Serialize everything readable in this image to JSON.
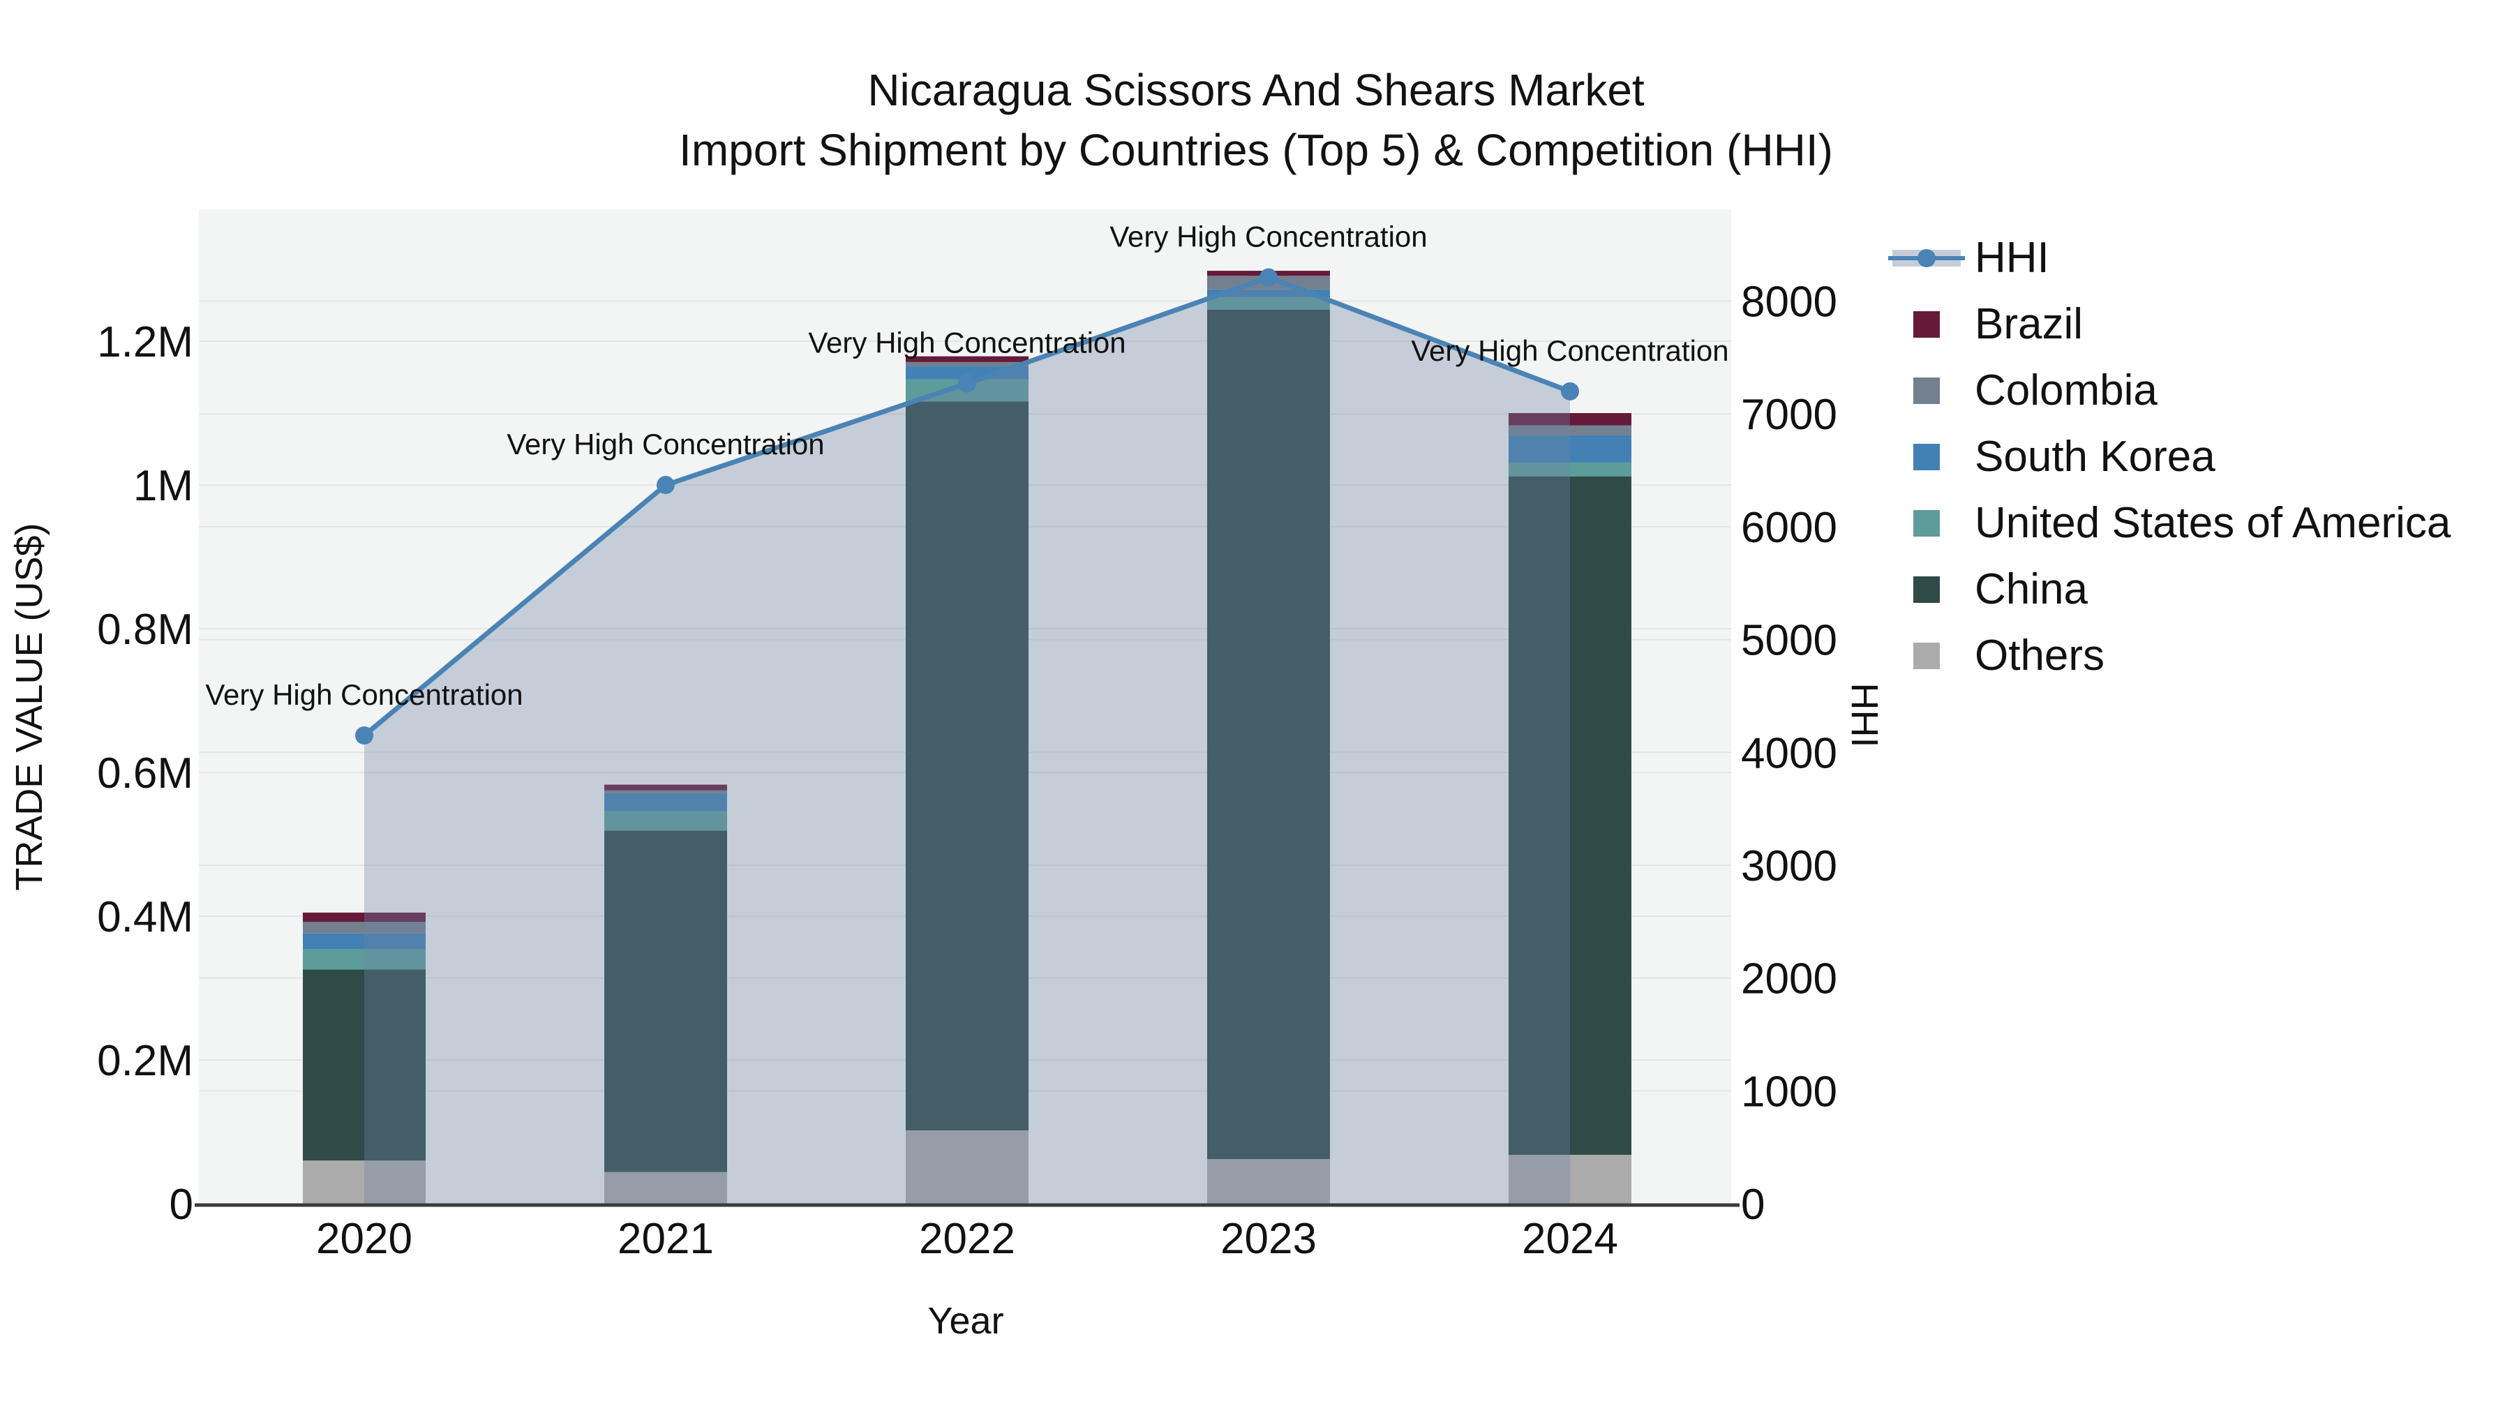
{
  "title": {
    "line1": "Nicaragua Scissors And Shears Market",
    "line2": "Import Shipment by Countries (Top 5) & Competition (HHI)"
  },
  "axes": {
    "left": {
      "title": "TRADE VALUE (US$)",
      "ticks": [
        {
          "label": "0",
          "value": 0
        },
        {
          "label": "0.2M",
          "value": 200000
        },
        {
          "label": "0.4M",
          "value": 400000
        },
        {
          "label": "0.6M",
          "value": 600000
        },
        {
          "label": "0.8M",
          "value": 800000
        },
        {
          "label": "1M",
          "value": 1000000
        },
        {
          "label": "1.2M",
          "value": 1200000
        }
      ],
      "range_max_value": 1383000
    },
    "right": {
      "title": "HHI",
      "ticks": [
        {
          "label": "0",
          "value": 0
        },
        {
          "label": "1000",
          "value": 1000
        },
        {
          "label": "2000",
          "value": 2000
        },
        {
          "label": "3000",
          "value": 3000
        },
        {
          "label": "4000",
          "value": 4000
        },
        {
          "label": "5000",
          "value": 5000
        },
        {
          "label": "6000",
          "value": 6000
        },
        {
          "label": "7000",
          "value": 7000
        },
        {
          "label": "8000",
          "value": 8000
        }
      ],
      "range_max_value": 8810
    },
    "x": {
      "title": "Year",
      "categories": [
        "2020",
        "2021",
        "2022",
        "2023",
        "2024"
      ]
    }
  },
  "legend": {
    "items": [
      {
        "label": "HHI",
        "type": "line",
        "color": "#4a83b5"
      },
      {
        "label": "Brazil",
        "type": "square",
        "color": "#651a3a"
      },
      {
        "label": "Colombia",
        "type": "square",
        "color": "#73808f"
      },
      {
        "label": "South Korea",
        "type": "square",
        "color": "#4381b4"
      },
      {
        "label": "United States of America",
        "type": "square",
        "color": "#5c9d9b"
      },
      {
        "label": "China",
        "type": "square",
        "color": "#2e4b48"
      },
      {
        "label": "Others",
        "type": "square",
        "color": "#ababab"
      }
    ]
  },
  "chart_data": {
    "type": "combo-stacked-bar-with-area-line",
    "categories": [
      "2020",
      "2021",
      "2022",
      "2023",
      "2024"
    ],
    "bar_unit": "US$",
    "series": [
      {
        "name": "Brazil",
        "color": "#651a3a",
        "values": [
          13000,
          8000,
          8000,
          7000,
          17000
        ]
      },
      {
        "name": "Colombia",
        "color": "#73808f",
        "values": [
          16000,
          4000,
          6000,
          19000,
          14000
        ]
      },
      {
        "name": "South Korea",
        "color": "#4381b4",
        "values": [
          22000,
          25000,
          18000,
          11000,
          38000
        ]
      },
      {
        "name": "United States of America",
        "color": "#5c9d9b",
        "values": [
          28000,
          27000,
          31000,
          17000,
          19000
        ]
      },
      {
        "name": "China",
        "color": "#2e4b48",
        "values": [
          266000,
          475000,
          1014000,
          1182000,
          944000
        ]
      },
      {
        "name": "Others",
        "color": "#ababab",
        "values": [
          60000,
          44000,
          102000,
          62000,
          68000
        ]
      }
    ],
    "stack_order_bottom_to_top": [
      "Others",
      "China",
      "United States of America",
      "South Korea",
      "Colombia",
      "Brazil"
    ],
    "bar_totals": [
      405000,
      583000,
      1179000,
      1298000,
      1100000
    ],
    "line_series": {
      "name": "HHI",
      "axis": "right",
      "values": [
        4150,
        6370,
        7270,
        8210,
        7200
      ],
      "color": "#4a83b5",
      "area_fill": "rgba(110,132,162,0.35)",
      "annotation": "Very High Concentration"
    },
    "xlabel": "Year",
    "ylabel_left": "TRADE VALUE (US$)",
    "ylabel_right": "HHI",
    "ylim_left": [
      0,
      1383000
    ],
    "ylim_right": [
      0,
      8810
    ],
    "grid": true,
    "legend_position": "right"
  },
  "style": {
    "plot_bg": "#f3f4f4",
    "grid_color": "#e3e5e6",
    "axis_line_color": "#3b3b3b",
    "legend_hhi_band": "#c7cdd8",
    "text_color": "#111111"
  }
}
